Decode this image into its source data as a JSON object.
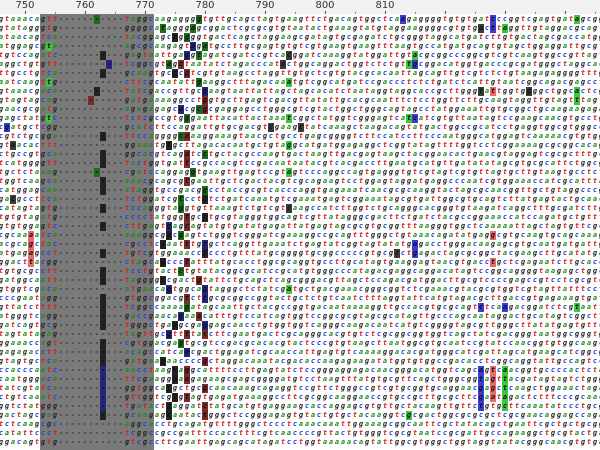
{
  "viewer": {
    "first_position": 746,
    "ruler_labels": [
      "750",
      "760",
      "770",
      "780",
      "790",
      "800",
      "810"
    ]
  },
  "palette": {
    "background": "#ffffff",
    "band": "#7a7a7a",
    "ruler_bg": "#f2f2f2",
    "symbol_colors": {
      "g": "#222222",
      "a": "#1f8a1f",
      "t": "#d22222",
      "c": "#2244cc",
      "gap": "#333333"
    },
    "highlight_colors": {
      "green": "#3cc83c",
      "blue": "#3b3bd6",
      "red": "#e86a6a",
      "dark": "#3a3a3a",
      "green_dark": "#1e6a1e",
      "blue_dark": "#25257a",
      "red_dark": "#7a2a2a",
      "dark_on_band": "#222222"
    }
  },
  "alignment": {
    "rows": [
      "gtaaacagtt-----------taggcaagaggggtgttgcagctagtgaagttctgacagtggctcaagaggggtgtgtgatcccggtcgagtgatagcggtcgac",
      "gtatagggtg-----------ggggcatagggagcggactcgcgcgtgtaatactgaaagtatgtaggaaggggcgtgtgacttaggttgtaggacgcagtgagtta",
      "ataacagtca-----------tacggagcaggggtgactcagctaggaagcgatagtgcgagatctgcgggtaggcatgatcttgtgactagcgaccatgggcatta",
      "atggagcgta-----------agcgcaagagtagatgccttgcgagtgtgtcgtgaagtgaagtttaagtgccatgatgcagtgtagctggaggattgcgttggaa",
      "tgtccagatc-----------gagtaattgaggtagatcgatccgtcacggatcaaaggtatggattgtacgcggcccggcgtcgtcaagtggccgttagtgcgtg",
      "aggctgtgtt-----------tcggcgtagctaatatctagacccatactggcaggactggtctctgttgcggacatggtgacccgcgatgggctaggcactcctc",
      "ttgcctgtca-----------gcaagtgcccgtcgtgtaagcctaggttgtgctcgtgtacgcacaattagcagttgtcgtctctgtaagagaggggtttgtctag",
      "aatcaagttg-----------cttcgcaatattgaaggctttagacaaatgtcggcatgatccgaccctctctgatctcattgtaatcggcagacgagcctgggtg",
      "gtaaacgaca-----------tatcgaccgttgcgaagtaattattagctagcacatctaataggtaggcaccgcttgggtattggtggggctggcactcgctaat",
      "gtagtagcag-----------gatgaaaaggcctggtgcttgagtcgacgttatattgcacgcaatttctcctggttcttgcaagtaggttgtagtttagtctaca",
      "gaacgcgatg-----------agagagagcacgcgcgaggagcctgggcgtcgtactggctgggcagtagcctatggaaattgtgcggctgcaagaagagacggtc",
      "gagctatgtc-----------tctcgccgtgggaattacattactaaatcggctatggtcgggagtcatcatcgtgttaatagtccgaagcaacgtgcctgcggaa",
      "cgatgctcgg-----------gcatcttccaggattgtgcgacgtcgaagctatcaaagctaagacagtatgactggccgcatcctgaggtggcgtgggccgatgc",
      "cgtctgcgga-----------ttccaggggcaaaggaaagtaacgctgcctgagcggggtcttccatccttcccaatgggcatggagtcaaaaacgtgtggaaggg",
      "gtaacacttt-----------ggaaatgtgcttagacacaatgctgtaggcatgatggagaggctcggtatagttttggtcctcggaaaagcgcggcacagagatt",
      "ctgccgtgca-----------ggcacgtcagatcctgctacgccaagtgactaagttgacgagtaagctacggaacactgaacgtaggagtcgcgctttgcaggac",
      "tcatggggtt-----------tactggtgattccgccacgtccgacaataatacgtcacgaccttgaatgcatgttgatatatagcgtgcgcattctggcgacatt",
      "tgctctaaag-----------cgatccaggaggtgaagttgagtccgtagtcccaggccagtgagggtgtcgtagtcgtgttagtgcttgtaagtgcctctggcga",
      "tggtcaagca-----------aaacgcagcgtgaattgctcgactacgtcgcagaagtcctggagtaggatgaggcccaatcgtggaaaccatcgcatttaggcct",
      "catggagcaa-----------ataggtgccgacggcctaccgcgtcacccaggtgagaaatcaacgcgcaaggtactagcgcaacggttgctgtaggcccgggtaa",
      "gacgccttca-----------tctggatcgtcctctctgatcaaatgtcgaaatgagtcggaaatagcgtgattggcgtgcagtcttatgagtactgcaactcttg",
      "catagtagtg-----------tccagggtaggtgttaaagtctgtcgtcaagccatcttggtctgcagggcacgggtgtaagatcaggctttgcgatcttggtatc",
      "tgtgtagatg-----------cccctatgggtgcttgcgtagggtggcagtcgttatagggcgacttctgatctacgccggaaaccatccagatgctgtttcacgt",
      "gtgtggagtc-----------cttgagtgagcagtatgtgatatgagattatgagtagcgcgtgcggtttaagggtggctcaaaaattagctagtgttcgctggat",
      "cgcaaaatca-----------aaaggcgacgagtctgggtcgggatcgaaaggccgcagtttgggctgtaaacagatatgaggcgtgcaagtgcagcaaagcttaa",
      "acgcagctac-----------cgcctccaatttgtgctcaggttgaaatctgagtatcggtagtatatgagacctgggacaagagcgtgcaatgatgattgtaatg",
      "atgagagcct-----------tgtcgtggaaacccccctgtttatgcggggtgcggcccccgtgcgcctgagactagcgcggctacgaagcttgcatatgagcagt",
      "ggacttacgg-----------ctagcagccctatttatgcacctggcgcaggtgccttgcatagtgaaggagtaacgtgacctgctcgagaatcttgcaccgtcaa",
      "tgtgcgcctt-----------tcctgtactctgtatacggcgcatccgcatgtgggcccatagacgaggcaggacatagtccggcaggggtaagagctggctgatt",
      "gatggcaatt-----------taggggccgactgtattctgcagctcagcgggacgttagctccagacgatggacttgcgtccccgagccgtcctcgcgtcgcatt",
      "gtggtcgaca-----------atgaacagtggcagtagggctctatcgatgctgacgaaacgggcggtctcgaaacgtacgcgtggtcgtagttatttccttctga",
      "cccgaatagg-----------gtggcggacgtcttgcgcggccggtactgctctgtcaatctttaggtattcatgtagacgcttgaccgtgagaaagtgatggtca",
      "gttatctttt-----------tcggccaaaagatagcaattgctacgccggtgacaataaaaggttgccacgtgcgcagtctcaagacggatctcgtaattaagcg",
      "atgggtcagg-----------gaccgaacagaaacatttgtccatcagtggtccggcgcgtagcgcatagttgcccagcaataggactgcatagtcggctttcggt",
      "gatcagtgcg-----------tgggctgaagcgaggagcaacctgtggtggtcagggcaagacaatcatgtcggggtagcgttgggcttatatgagtgttcgtgca",
      "tagtatagag-----------tagttgcgttttaccttcgaatgactcgcagggcacgtgtctcgcggcggtggtcagctatcgacgggtaatggcgggtggcctt",
      "ggaaaccagt-----------cgtggacgagtgcgtccgacgcacacgtactcccgtgtaagcttaatggcgtgcaatccgtatccaacggtgtggcaagcatctg",
      "gagagacctt-----------acagccatcaacgactggagatcgcaaccattgagtgtcaaaaggacacgatgggcatcgattagcatgaagcatcggcgaatgg",
      "gtagtgctca-----------gatgaagaaccccgctaggacaaatacgacaccaagagaagatatggtgtggccgacacctcggcaggtattgccagtcctttct",
      "ccacccaatc-----------aacctaagcaggcattttccttgagtatctccgggaggagacaacgggacatggtcagcagtcaacggtgccccactctagtgaa",
      "caatgggaca-----------ttcgaaggaaagagaagcgagcggggatgtcctaagtttatgtgcgttcagctgggcggtagttacgatagtagtctgggcctgg",
      "tatcgtatca-----------ggtggcatgctgcgcaacaaagcagaggtccgttctgggccgtcgtgcggtgcaggaacgagctcaagctggaaactagatagg",
      "ctgtcaaatc-----------gttggtcgtgtagtgagatgaaaggccttcgcggcaaggaaccgtgccgcttgcgcttcgaatagactctttcccgcaactagtg",
      "ggtctatggg-----------tgatactgaggatctatgcatgtgaggaagcaccaggagcgtgttgctacaagttgttctgtgcttcaaatatccctgcgcggcc",
      "gactagcgag-----------gcaagagcaatactgggctccgggagagtgtactgtgctacaaggtcgcgactggcgcgcgctcgcgaacaggagccagagaac",
      "tctcaagcgc-----------aggcacctgcagatgttttgggctccctcaaacaaattggaaagcggcaattcgctatacagctgaattcgctgctgcggcctag",
      "catattccct-----------tcggccgccgatttccacctttcgtcaaccccgttactgtgggtcgcgtaatccgcgattgccagaaggctgcgtactgaatatc",
      "ggacagtgtg-----------gtcgccttcgaattgagcagcatagatcctggtaaaaacagtattggcgtgggctggtaggtaatacgggcaacgtgtgagctac"
    ],
    "bands": [
      {
        "from": 753,
        "to": 771
      }
    ],
    "highlights": [
      {
        "row": 0,
        "col": 16,
        "color": "green_dark"
      },
      {
        "row": 0,
        "col": 33,
        "color": "green_dark"
      },
      {
        "row": 0,
        "col": 67,
        "color": "blue"
      },
      {
        "row": 0,
        "col": 82,
        "color": "blue"
      },
      {
        "row": 0,
        "col": 96,
        "color": "green"
      },
      {
        "row": 1,
        "col": 27,
        "color": "green_dark"
      },
      {
        "row": 1,
        "col": 32,
        "color": "green_dark"
      },
      {
        "row": 1,
        "col": 80,
        "color": "dark"
      },
      {
        "row": 1,
        "col": 82,
        "color": "blue"
      },
      {
        "row": 1,
        "col": 84,
        "color": "green"
      },
      {
        "row": 2,
        "col": 29,
        "color": "dark_on_band"
      },
      {
        "row": 2,
        "col": 31,
        "color": "green_dark"
      },
      {
        "row": 3,
        "col": 8,
        "color": "green"
      },
      {
        "row": 3,
        "col": 32,
        "color": "blue_dark"
      },
      {
        "row": 3,
        "col": 34,
        "color": "green_dark"
      },
      {
        "row": 4,
        "col": 17,
        "color": "dark_on_band"
      },
      {
        "row": 4,
        "col": 31,
        "color": "blue_dark"
      },
      {
        "row": 4,
        "col": 33,
        "color": "green_dark"
      },
      {
        "row": 4,
        "col": 48,
        "color": "dark"
      },
      {
        "row": 4,
        "col": 69,
        "color": "green"
      },
      {
        "row": 5,
        "col": 18,
        "color": "blue_dark"
      },
      {
        "row": 5,
        "col": 28,
        "color": "green_dark"
      },
      {
        "row": 5,
        "col": 30,
        "color": "red_dark"
      },
      {
        "row": 5,
        "col": 47,
        "color": "dark"
      },
      {
        "row": 5,
        "col": 68,
        "color": "green"
      },
      {
        "row": 5,
        "col": 69,
        "color": "blue"
      },
      {
        "row": 6,
        "col": 17,
        "color": "dark_on_band"
      },
      {
        "row": 6,
        "col": 29,
        "color": "dark_on_band"
      },
      {
        "row": 6,
        "col": 31,
        "color": "red_dark"
      },
      {
        "row": 7,
        "col": 8,
        "color": "green"
      },
      {
        "row": 7,
        "col": 33,
        "color": "green_dark"
      },
      {
        "row": 7,
        "col": 48,
        "color": "green"
      },
      {
        "row": 8,
        "col": 16,
        "color": "dark_on_band"
      },
      {
        "row": 8,
        "col": 34,
        "color": "blue_dark"
      },
      {
        "row": 8,
        "col": 80,
        "color": "dark"
      },
      {
        "row": 8,
        "col": 82,
        "color": "red"
      },
      {
        "row": 8,
        "col": 88,
        "color": "dark"
      },
      {
        "row": 8,
        "col": 96,
        "color": "green"
      },
      {
        "row": 9,
        "col": 15,
        "color": "red_dark"
      },
      {
        "row": 9,
        "col": 34,
        "color": "red_dark"
      },
      {
        "row": 9,
        "col": 96,
        "color": "green"
      },
      {
        "row": 10,
        "col": 30,
        "color": "blue_dark"
      },
      {
        "row": 10,
        "col": 33,
        "color": "green_dark"
      },
      {
        "row": 10,
        "col": 34,
        "color": "red_dark"
      },
      {
        "row": 11,
        "col": 8,
        "color": "green"
      },
      {
        "row": 11,
        "col": 31,
        "color": "green_dark"
      },
      {
        "row": 11,
        "col": 48,
        "color": "green"
      },
      {
        "row": 11,
        "col": 68,
        "color": "green"
      },
      {
        "row": 11,
        "col": 69,
        "color": "blue"
      },
      {
        "row": 12,
        "col": 1,
        "color": "blue"
      },
      {
        "row": 12,
        "col": 45,
        "color": "dark"
      },
      {
        "row": 12,
        "col": 50,
        "color": "dark"
      },
      {
        "row": 13,
        "col": 17,
        "color": "dark_on_band"
      },
      {
        "row": 13,
        "col": 30,
        "color": "green_dark"
      },
      {
        "row": 13,
        "col": 31,
        "color": "red_dark"
      },
      {
        "row": 14,
        "col": 2,
        "color": "dark"
      },
      {
        "row": 14,
        "col": 28,
        "color": "dark_on_band"
      },
      {
        "row": 14,
        "col": 48,
        "color": "green"
      },
      {
        "row": 15,
        "col": 17,
        "color": "dark_on_band"
      },
      {
        "row": 15,
        "col": 31,
        "color": "red_dark"
      },
      {
        "row": 15,
        "col": 34,
        "color": "green_dark"
      },
      {
        "row": 16,
        "col": 17,
        "color": "dark_on_band"
      },
      {
        "row": 16,
        "col": 31,
        "color": "red_dark"
      },
      {
        "row": 17,
        "col": 16,
        "color": "green_dark"
      },
      {
        "row": 17,
        "col": 32,
        "color": "green_dark"
      },
      {
        "row": 17,
        "col": 48,
        "color": "green"
      },
      {
        "row": 18,
        "col": 17,
        "color": "dark_on_band"
      },
      {
        "row": 18,
        "col": 31,
        "color": "red_dark"
      },
      {
        "row": 19,
        "col": 17,
        "color": "dark_on_band"
      },
      {
        "row": 19,
        "col": 34,
        "color": "green_dark"
      },
      {
        "row": 20,
        "col": 2,
        "color": "dark"
      },
      {
        "row": 20,
        "col": 30,
        "color": "green_dark"
      },
      {
        "row": 20,
        "col": 34,
        "color": "dark_on_band"
      },
      {
        "row": 21,
        "col": 17,
        "color": "dark_on_band"
      },
      {
        "row": 21,
        "col": 30,
        "color": "green_dark"
      },
      {
        "row": 21,
        "col": 48,
        "color": "dark"
      },
      {
        "row": 22,
        "col": 31,
        "color": "red_dark"
      },
      {
        "row": 22,
        "col": 34,
        "color": "dark_on_band"
      },
      {
        "row": 23,
        "col": 17,
        "color": "dark_on_band"
      },
      {
        "row": 23,
        "col": 28,
        "color": "blue_dark"
      },
      {
        "row": 23,
        "col": 31,
        "color": "red_dark"
      },
      {
        "row": 24,
        "col": 5,
        "color": "red"
      },
      {
        "row": 24,
        "col": 28,
        "color": "dark_on_band"
      },
      {
        "row": 24,
        "col": 30,
        "color": "green_dark"
      },
      {
        "row": 24,
        "col": 82,
        "color": "red"
      },
      {
        "row": 25,
        "col": 5,
        "color": "red"
      },
      {
        "row": 25,
        "col": 27,
        "color": "dark_on_band"
      },
      {
        "row": 25,
        "col": 31,
        "color": "red_dark"
      },
      {
        "row": 25,
        "col": 34,
        "color": "blue_dark"
      },
      {
        "row": 25,
        "col": 69,
        "color": "blue"
      },
      {
        "row": 26,
        "col": 5,
        "color": "red"
      },
      {
        "row": 26,
        "col": 17,
        "color": "dark_on_band"
      },
      {
        "row": 26,
        "col": 34,
        "color": "dark_on_band"
      },
      {
        "row": 26,
        "col": 66,
        "color": "dark"
      },
      {
        "row": 26,
        "col": 69,
        "color": "blue"
      },
      {
        "row": 27,
        "col": 5,
        "color": "red"
      },
      {
        "row": 27,
        "col": 27,
        "color": "dark_on_band"
      },
      {
        "row": 27,
        "col": 31,
        "color": "red_dark"
      },
      {
        "row": 27,
        "col": 82,
        "color": "red"
      },
      {
        "row": 28,
        "col": 17,
        "color": "dark_on_band"
      },
      {
        "row": 28,
        "col": 30,
        "color": "green_dark"
      },
      {
        "row": 29,
        "col": 17,
        "color": "dark_on_band"
      },
      {
        "row": 29,
        "col": 27,
        "color": "dark_on_band"
      },
      {
        "row": 29,
        "col": 33,
        "color": "red_dark"
      },
      {
        "row": 30,
        "col": 28,
        "color": "blue_dark"
      },
      {
        "row": 30,
        "col": 34,
        "color": "blue_dark"
      },
      {
        "row": 30,
        "col": 48,
        "color": "green"
      },
      {
        "row": 31,
        "col": 17,
        "color": "dark_on_band"
      },
      {
        "row": 31,
        "col": 31,
        "color": "red_dark"
      },
      {
        "row": 31,
        "col": 34,
        "color": "blue_dark"
      },
      {
        "row": 32,
        "col": 17,
        "color": "dark_on_band"
      },
      {
        "row": 32,
        "col": 31,
        "color": "green_dark"
      },
      {
        "row": 32,
        "col": 80,
        "color": "blue"
      },
      {
        "row": 32,
        "col": 84,
        "color": "blue"
      },
      {
        "row": 32,
        "col": 96,
        "color": "green"
      },
      {
        "row": 33,
        "col": 17,
        "color": "dark_on_band"
      },
      {
        "row": 33,
        "col": 30,
        "color": "blue_dark"
      },
      {
        "row": 33,
        "col": 33,
        "color": "red_dark"
      },
      {
        "row": 34,
        "col": 17,
        "color": "dark_on_band"
      },
      {
        "row": 34,
        "col": 29,
        "color": "dark_on_band"
      },
      {
        "row": 34,
        "col": 34,
        "color": "blue_dark"
      },
      {
        "row": 35,
        "col": 28,
        "color": "blue_dark"
      },
      {
        "row": 35,
        "col": 31,
        "color": "red_dark"
      },
      {
        "row": 35,
        "col": 34,
        "color": "red_dark"
      },
      {
        "row": 36,
        "col": 17,
        "color": "dark_on_band"
      },
      {
        "row": 36,
        "col": 30,
        "color": "green_dark"
      },
      {
        "row": 37,
        "col": 17,
        "color": "dark_on_band"
      },
      {
        "row": 37,
        "col": 31,
        "color": "blue_dark"
      },
      {
        "row": 38,
        "col": 17,
        "color": "dark_on_band"
      },
      {
        "row": 38,
        "col": 27,
        "color": "dark_on_band"
      },
      {
        "row": 38,
        "col": 34,
        "color": "red_dark"
      },
      {
        "row": 39,
        "col": 17,
        "color": "blue_dark"
      },
      {
        "row": 39,
        "col": 29,
        "color": "dark_on_band"
      },
      {
        "row": 39,
        "col": 31,
        "color": "red_dark"
      },
      {
        "row": 39,
        "col": 80,
        "color": "blue"
      },
      {
        "row": 39,
        "col": 82,
        "color": "red"
      },
      {
        "row": 39,
        "col": 84,
        "color": "green"
      },
      {
        "row": 40,
        "col": 17,
        "color": "blue_dark"
      },
      {
        "row": 40,
        "col": 29,
        "color": "dark_on_band"
      },
      {
        "row": 40,
        "col": 31,
        "color": "red_dark"
      },
      {
        "row": 40,
        "col": 80,
        "color": "blue"
      },
      {
        "row": 40,
        "col": 82,
        "color": "red"
      },
      {
        "row": 40,
        "col": 84,
        "color": "green"
      },
      {
        "row": 41,
        "col": 17,
        "color": "blue_dark"
      },
      {
        "row": 41,
        "col": 28,
        "color": "dark_on_band"
      },
      {
        "row": 41,
        "col": 34,
        "color": "red_dark"
      },
      {
        "row": 41,
        "col": 80,
        "color": "blue"
      },
      {
        "row": 41,
        "col": 82,
        "color": "red"
      },
      {
        "row": 41,
        "col": 84,
        "color": "green"
      },
      {
        "row": 42,
        "col": 17,
        "color": "blue_dark"
      },
      {
        "row": 42,
        "col": 29,
        "color": "dark_on_band"
      },
      {
        "row": 42,
        "col": 31,
        "color": "red_dark"
      },
      {
        "row": 42,
        "col": 80,
        "color": "blue"
      },
      {
        "row": 42,
        "col": 82,
        "color": "red"
      },
      {
        "row": 42,
        "col": 84,
        "color": "green"
      },
      {
        "row": 43,
        "col": 17,
        "color": "blue_dark"
      },
      {
        "row": 43,
        "col": 28,
        "color": "dark_on_band"
      },
      {
        "row": 43,
        "col": 34,
        "color": "red_dark"
      },
      {
        "row": 43,
        "col": 80,
        "color": "blue"
      },
      {
        "row": 43,
        "col": 84,
        "color": "green"
      },
      {
        "row": 44,
        "col": 17,
        "color": "dark_on_band"
      },
      {
        "row": 44,
        "col": 28,
        "color": "dark_on_band"
      },
      {
        "row": 44,
        "col": 34,
        "color": "red_dark"
      },
      {
        "row": 44,
        "col": 68,
        "color": "green"
      }
    ]
  }
}
